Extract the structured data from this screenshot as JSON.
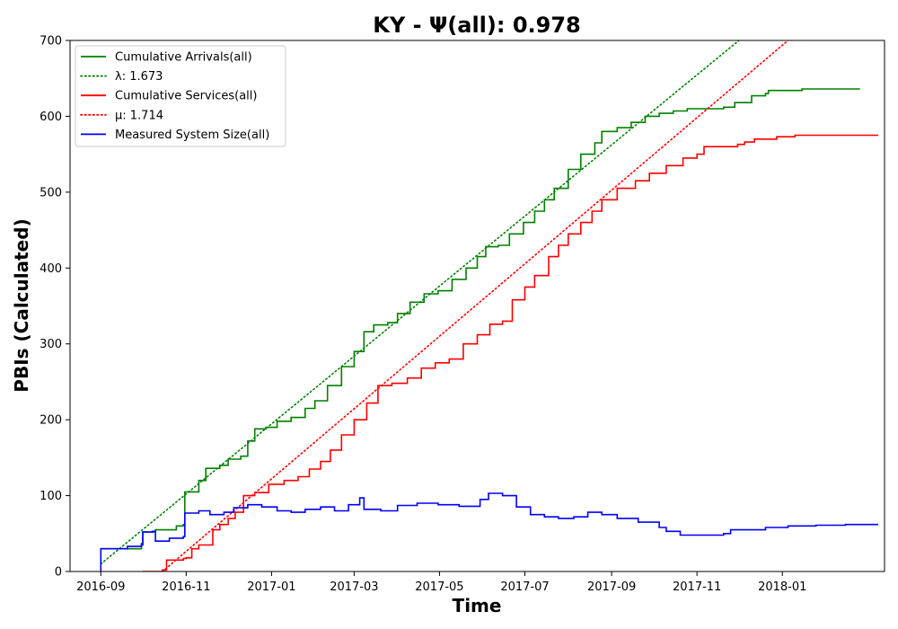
{
  "chart_data": {
    "type": "line",
    "title": "KY -  Ψ(all): 0.978",
    "xlabel": "Time",
    "ylabel": "PBIs (Calculated)",
    "xlim": [
      "2016-08-10",
      "2018-03-15"
    ],
    "ylim": [
      0,
      700
    ],
    "yticks": [
      0,
      100,
      200,
      300,
      400,
      500,
      600,
      700
    ],
    "xticks": [
      "2016-09",
      "2016-11",
      "2017-01",
      "2017-03",
      "2017-05",
      "2017-07",
      "2017-09",
      "2017-11",
      "2018-01"
    ],
    "legend_position": "top-left",
    "grid": false,
    "colors": {
      "arrivals": "#008000",
      "services": "#ff0000",
      "system_size": "#0000ff"
    },
    "series": [
      {
        "name": "Cumulative Arrivals(all)",
        "style": "solid",
        "color": "#008000",
        "points": [
          [
            "2016-09-01",
            30
          ],
          [
            "2016-09-30",
            37
          ],
          [
            "2016-10-01",
            52
          ],
          [
            "2016-10-10",
            55
          ],
          [
            "2016-10-25",
            60
          ],
          [
            "2016-10-30",
            62
          ],
          [
            "2016-10-31",
            105
          ],
          [
            "2016-11-10",
            120
          ],
          [
            "2016-11-15",
            136
          ],
          [
            "2016-11-25",
            140
          ],
          [
            "2016-12-01",
            148
          ],
          [
            "2016-12-10",
            152
          ],
          [
            "2016-12-15",
            172
          ],
          [
            "2016-12-20",
            188
          ],
          [
            "2016-12-28",
            190
          ],
          [
            "2017-01-05",
            198
          ],
          [
            "2017-01-15",
            203
          ],
          [
            "2017-01-25",
            215
          ],
          [
            "2017-02-01",
            225
          ],
          [
            "2017-02-10",
            245
          ],
          [
            "2017-02-20",
            270
          ],
          [
            "2017-03-01",
            290
          ],
          [
            "2017-03-08",
            316
          ],
          [
            "2017-03-15",
            325
          ],
          [
            "2017-03-25",
            328
          ],
          [
            "2017-04-01",
            340
          ],
          [
            "2017-04-10",
            355
          ],
          [
            "2017-04-20",
            366
          ],
          [
            "2017-04-30",
            370
          ],
          [
            "2017-05-10",
            385
          ],
          [
            "2017-05-20",
            400
          ],
          [
            "2017-05-28",
            415
          ],
          [
            "2017-06-03",
            428
          ],
          [
            "2017-06-12",
            430
          ],
          [
            "2017-06-20",
            445
          ],
          [
            "2017-06-30",
            460
          ],
          [
            "2017-07-08",
            475
          ],
          [
            "2017-07-15",
            490
          ],
          [
            "2017-07-22",
            505
          ],
          [
            "2017-08-01",
            530
          ],
          [
            "2017-08-10",
            550
          ],
          [
            "2017-08-20",
            565
          ],
          [
            "2017-08-25",
            580
          ],
          [
            "2017-09-05",
            585
          ],
          [
            "2017-09-15",
            592
          ],
          [
            "2017-09-25",
            600
          ],
          [
            "2017-10-05",
            604
          ],
          [
            "2017-10-15",
            607
          ],
          [
            "2017-10-25",
            610
          ],
          [
            "2017-11-20",
            612
          ],
          [
            "2017-11-28",
            618
          ],
          [
            "2017-12-10",
            627
          ],
          [
            "2017-12-20",
            630
          ],
          [
            "2017-12-22",
            634
          ],
          [
            "2018-01-15",
            636
          ],
          [
            "2018-02-25",
            637
          ]
        ]
      },
      {
        "name": "λ: 1.673",
        "style": "dotted",
        "color": "#008000",
        "points": [
          [
            "2016-09-01",
            10
          ],
          [
            "2017-12-01",
            700
          ]
        ]
      },
      {
        "name": "Cumulative Services(all)",
        "style": "solid",
        "color": "#ff0000",
        "points": [
          [
            "2016-10-01",
            0
          ],
          [
            "2016-10-15",
            2
          ],
          [
            "2016-10-18",
            15
          ],
          [
            "2016-10-30",
            17
          ],
          [
            "2016-11-01",
            18
          ],
          [
            "2016-11-05",
            30
          ],
          [
            "2016-11-10",
            35
          ],
          [
            "2016-11-20",
            55
          ],
          [
            "2016-11-25",
            62
          ],
          [
            "2016-12-01",
            70
          ],
          [
            "2016-12-06",
            78
          ],
          [
            "2016-12-12",
            100
          ],
          [
            "2016-12-20",
            104
          ],
          [
            "2016-12-30",
            115
          ],
          [
            "2017-01-10",
            120
          ],
          [
            "2017-01-20",
            125
          ],
          [
            "2017-01-28",
            135
          ],
          [
            "2017-02-05",
            145
          ],
          [
            "2017-02-12",
            160
          ],
          [
            "2017-02-20",
            180
          ],
          [
            "2017-03-01",
            200
          ],
          [
            "2017-03-10",
            222
          ],
          [
            "2017-03-18",
            245
          ],
          [
            "2017-03-28",
            248
          ],
          [
            "2017-04-08",
            255
          ],
          [
            "2017-04-18",
            268
          ],
          [
            "2017-04-28",
            275
          ],
          [
            "2017-05-08",
            280
          ],
          [
            "2017-05-18",
            300
          ],
          [
            "2017-05-28",
            312
          ],
          [
            "2017-06-06",
            326
          ],
          [
            "2017-06-15",
            330
          ],
          [
            "2017-06-22",
            358
          ],
          [
            "2017-07-01",
            375
          ],
          [
            "2017-07-08",
            390
          ],
          [
            "2017-07-18",
            415
          ],
          [
            "2017-07-25",
            430
          ],
          [
            "2017-08-01",
            445
          ],
          [
            "2017-08-10",
            460
          ],
          [
            "2017-08-18",
            475
          ],
          [
            "2017-08-25",
            490
          ],
          [
            "2017-09-05",
            505
          ],
          [
            "2017-09-18",
            515
          ],
          [
            "2017-09-28",
            525
          ],
          [
            "2017-10-10",
            535
          ],
          [
            "2017-10-22",
            545
          ],
          [
            "2017-11-01",
            550
          ],
          [
            "2017-11-06",
            560
          ],
          [
            "2017-11-30",
            563
          ],
          [
            "2017-12-05",
            566
          ],
          [
            "2017-12-12",
            570
          ],
          [
            "2017-12-28",
            573
          ],
          [
            "2018-01-10",
            575
          ],
          [
            "2018-03-10",
            576
          ]
        ]
      },
      {
        "name": "μ: 1.714",
        "style": "dotted",
        "color": "#ff0000",
        "points": [
          [
            "2016-10-15",
            0
          ],
          [
            "2018-01-05",
            700
          ]
        ]
      },
      {
        "name": "Measured System Size(all)",
        "style": "solid",
        "color": "#0000ff",
        "points": [
          [
            "2016-09-01",
            0
          ],
          [
            "2016-09-01",
            30
          ],
          [
            "2016-09-20",
            33
          ],
          [
            "2016-09-30",
            35
          ],
          [
            "2016-10-01",
            52
          ],
          [
            "2016-10-08",
            53
          ],
          [
            "2016-10-10",
            40
          ],
          [
            "2016-10-20",
            44
          ],
          [
            "2016-10-30",
            46
          ],
          [
            "2016-10-31",
            77
          ],
          [
            "2016-11-10",
            80
          ],
          [
            "2016-11-18",
            75
          ],
          [
            "2016-11-28",
            78
          ],
          [
            "2016-12-05",
            84
          ],
          [
            "2016-12-15",
            88
          ],
          [
            "2016-12-25",
            85
          ],
          [
            "2017-01-05",
            80
          ],
          [
            "2017-01-15",
            78
          ],
          [
            "2017-01-25",
            82
          ],
          [
            "2017-02-05",
            85
          ],
          [
            "2017-02-15",
            80
          ],
          [
            "2017-02-25",
            88
          ],
          [
            "2017-03-05",
            97
          ],
          [
            "2017-03-08",
            82
          ],
          [
            "2017-03-20",
            80
          ],
          [
            "2017-04-01",
            87
          ],
          [
            "2017-04-15",
            90
          ],
          [
            "2017-04-30",
            88
          ],
          [
            "2017-05-15",
            86
          ],
          [
            "2017-05-30",
            95
          ],
          [
            "2017-06-05",
            103
          ],
          [
            "2017-06-15",
            100
          ],
          [
            "2017-06-25",
            85
          ],
          [
            "2017-07-05",
            75
          ],
          [
            "2017-07-15",
            72
          ],
          [
            "2017-07-25",
            70
          ],
          [
            "2017-08-05",
            72
          ],
          [
            "2017-08-15",
            78
          ],
          [
            "2017-08-25",
            75
          ],
          [
            "2017-09-05",
            70
          ],
          [
            "2017-09-20",
            65
          ],
          [
            "2017-10-05",
            58
          ],
          [
            "2017-10-10",
            53
          ],
          [
            "2017-10-20",
            48
          ],
          [
            "2017-11-20",
            50
          ],
          [
            "2017-11-25",
            55
          ],
          [
            "2017-12-10",
            55
          ],
          [
            "2017-12-20",
            58
          ],
          [
            "2018-01-05",
            60
          ],
          [
            "2018-01-25",
            61
          ],
          [
            "2018-02-15",
            62
          ],
          [
            "2018-03-10",
            61
          ]
        ]
      }
    ]
  }
}
